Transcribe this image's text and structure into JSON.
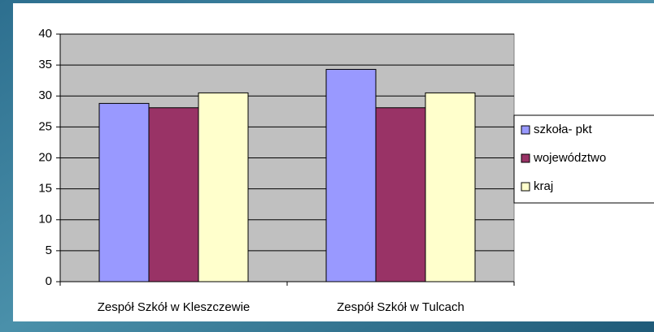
{
  "chart_data": {
    "type": "bar",
    "categories": [
      "Zespół Szkół w Kleszczewie",
      "Zespół Szkół w Tulcach"
    ],
    "series": [
      {
        "name": "szkoła- pkt",
        "color": "#9999ff",
        "values": [
          28.8,
          34.3
        ]
      },
      {
        "name": "województwo",
        "color": "#993366",
        "values": [
          28.1,
          28.1
        ]
      },
      {
        "name": "kraj",
        "color": "#ffffcc",
        "values": [
          30.5,
          30.5
        ]
      }
    ],
    "ylim": [
      0,
      40
    ],
    "yticks": [
      0,
      5,
      10,
      15,
      20,
      25,
      30,
      35,
      40
    ],
    "grid": true,
    "legend": "right"
  }
}
